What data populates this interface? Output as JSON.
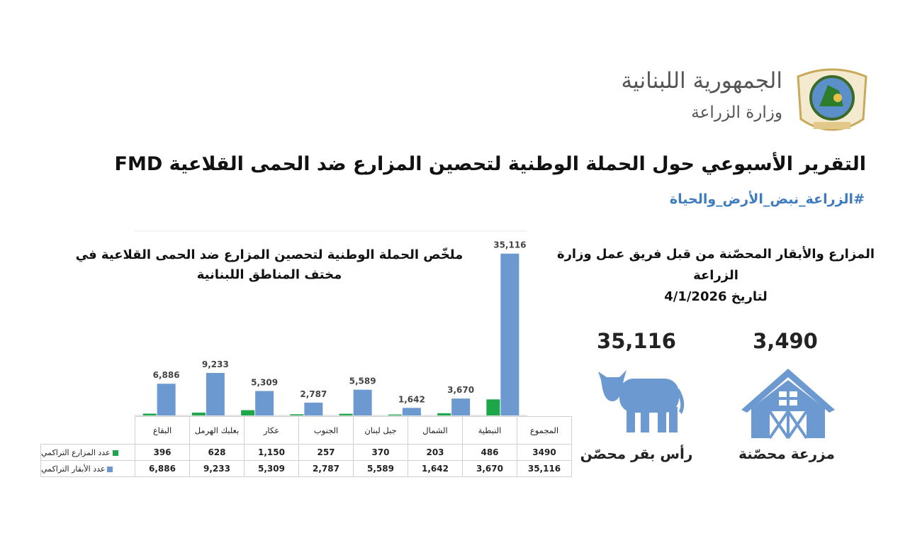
{
  "header": {
    "country": "الجمهورية اللبنانية",
    "ministry": "وزارة الزراعة"
  },
  "title": "التقرير الأسبوعي حول الحملة الوطنية لتحصين المزارع ضد الحمى القلاعية FMD",
  "hashtag": "#الزراعة_نبض_الأرض_والحياة",
  "summary": {
    "heading": [
      "المزارع والأبقار المحصّنة من قبل فريق عمل وزارة الزراعة",
      "لتاريخ 4/1/2026"
    ],
    "stats": [
      {
        "value": "35,116",
        "label": "رأس بقر محصّن"
      },
      {
        "value": "3,490",
        "label": "مزرعة محصّنة"
      }
    ]
  },
  "chart_data": {
    "type": "bar",
    "title": [
      "ملخّص الحملة الوطنية لتحصين المزارع ضد الحمى القلاعية في",
      "مختف المناطق اللبنانية"
    ],
    "categories": [
      "البقاع",
      "بعلبك الهرمل",
      "عكار",
      "الجنوب",
      "جبل لبنان",
      "الشمال",
      "النبطية",
      "المجموع"
    ],
    "series": [
      {
        "name": "عدد المزارع التراكمي",
        "color": "#1ea64b",
        "values": [
          396,
          628,
          1150,
          257,
          370,
          203,
          486,
          3490
        ],
        "value_labels": [
          "396",
          "628",
          "1,150",
          "257",
          "370",
          "203",
          "486",
          "3490"
        ]
      },
      {
        "name": "عدد الأبقار التراكمي",
        "color": "#6c99d0",
        "values": [
          6886,
          9233,
          5309,
          2787,
          5589,
          1642,
          3670,
          35116
        ],
        "value_labels": [
          "6,886",
          "9,233",
          "5,309",
          "2,787",
          "5,589",
          "1,642",
          "3,670",
          "35,116"
        ]
      }
    ],
    "ylim": [
      0,
      40000
    ],
    "data_labels_series": 1
  }
}
